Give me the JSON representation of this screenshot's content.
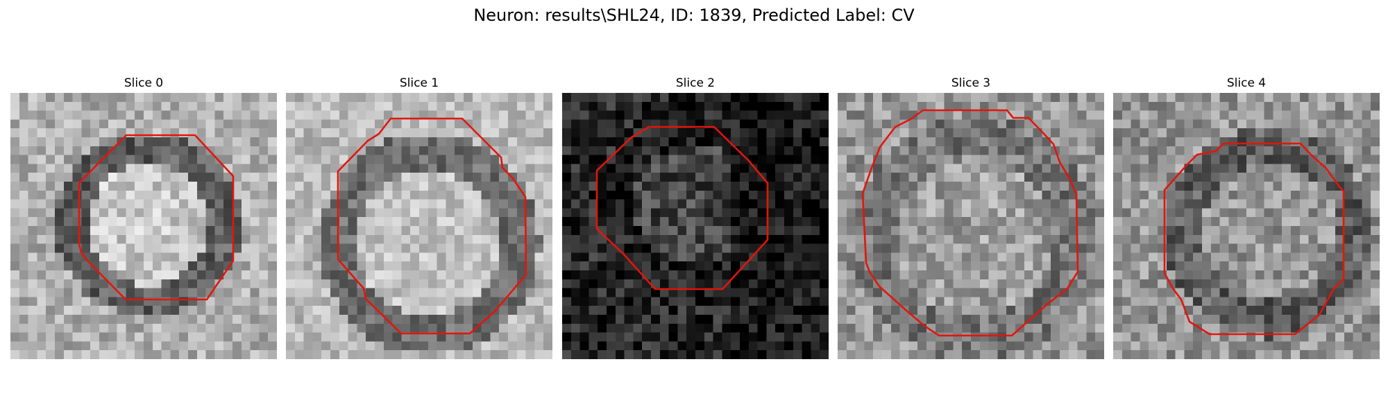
{
  "suptitle": "Neuron: results\\SHL24, ID: 1839, Predicted Label: CV",
  "outline_color": "#e3150c",
  "colormap": "gray",
  "slices": [
    {
      "title": "Slice 0"
    },
    {
      "title": "Slice 1"
    },
    {
      "title": "Slice 2"
    },
    {
      "title": "Slice 3"
    },
    {
      "title": "Slice 4"
    }
  ]
}
